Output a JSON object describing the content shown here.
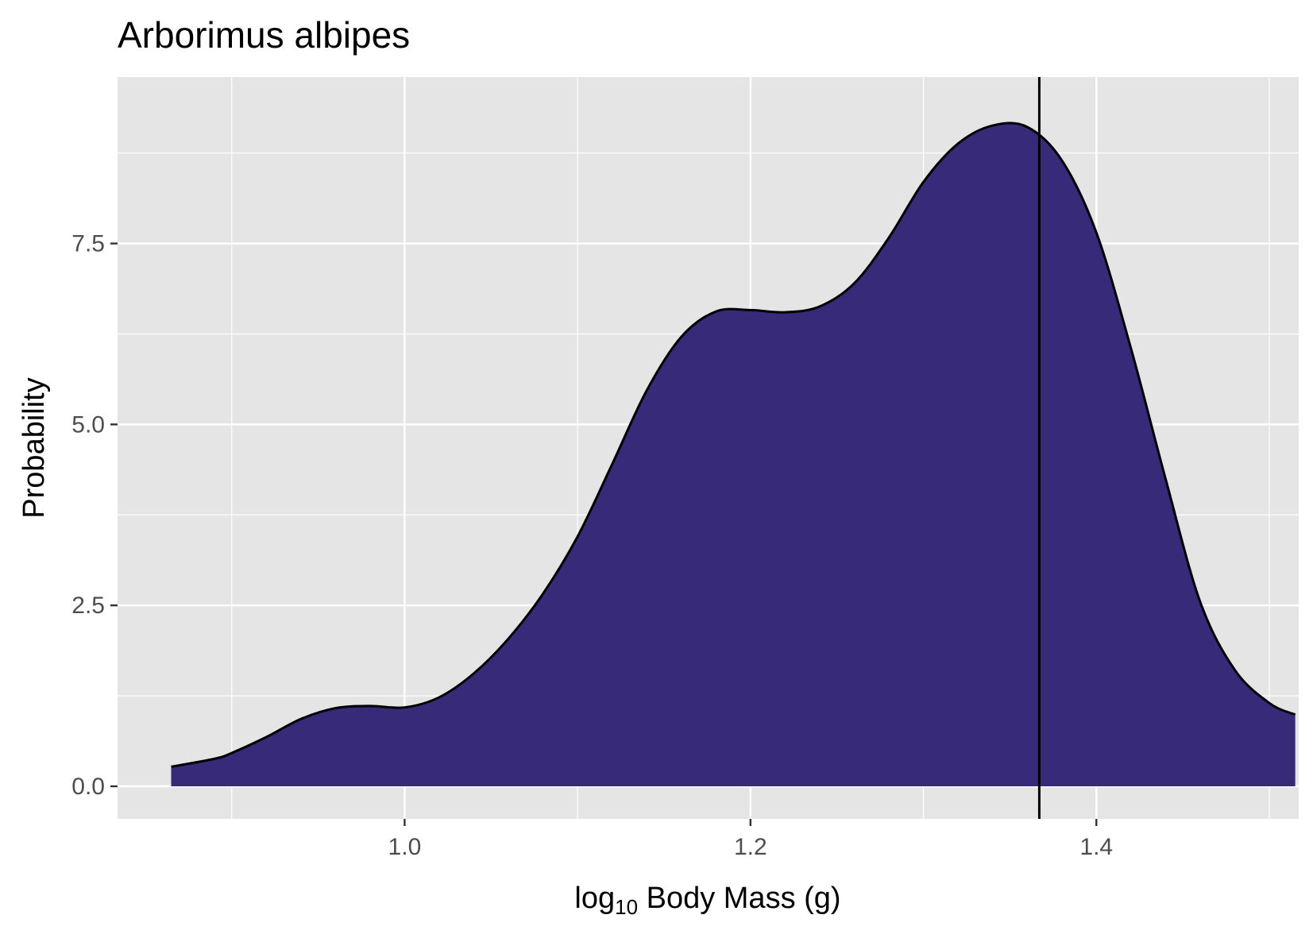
{
  "chart_data": {
    "type": "area",
    "title": "Arborimus albipes",
    "xlabel": {
      "prefix": "log",
      "subscript": "10",
      "rest": " Body Mass (g)"
    },
    "ylabel": "Probability",
    "xlim": [
      0.834,
      1.517
    ],
    "ylim": [
      -0.45,
      9.8
    ],
    "x_ticks": [
      {
        "value": 1.0,
        "label": "1.0"
      },
      {
        "value": 1.2,
        "label": "1.2"
      },
      {
        "value": 1.4,
        "label": "1.4"
      }
    ],
    "y_ticks": [
      {
        "value": 0.0,
        "label": "0.0"
      },
      {
        "value": 2.5,
        "label": "2.5"
      },
      {
        "value": 5.0,
        "label": "5.0"
      },
      {
        "value": 7.5,
        "label": "7.5"
      }
    ],
    "x_minor": [
      0.9,
      1.1,
      1.3,
      1.5
    ],
    "y_minor": [
      1.25,
      3.75,
      6.25,
      8.75
    ],
    "grid": true,
    "fill_color": "#372a78",
    "line_color": "#000000",
    "background_color": "#e5e5e5",
    "vline_x": 1.367,
    "series": [
      {
        "x": [
          0.865,
          0.89,
          0.9,
          0.92,
          0.94,
          0.96,
          0.98,
          1.0,
          1.02,
          1.04,
          1.06,
          1.08,
          1.1,
          1.12,
          1.14,
          1.16,
          1.18,
          1.2,
          1.22,
          1.24,
          1.26,
          1.28,
          1.3,
          1.32,
          1.34,
          1.36,
          1.38,
          1.4,
          1.42,
          1.44,
          1.46,
          1.48,
          1.5,
          1.515
        ],
        "y": [
          0.27,
          0.38,
          0.46,
          0.68,
          0.93,
          1.08,
          1.11,
          1.09,
          1.23,
          1.56,
          2.04,
          2.66,
          3.45,
          4.45,
          5.47,
          6.21,
          6.56,
          6.58,
          6.55,
          6.63,
          6.95,
          7.58,
          8.35,
          8.88,
          9.13,
          9.11,
          8.65,
          7.65,
          6.05,
          4.25,
          2.55,
          1.61,
          1.15,
          0.99
        ]
      }
    ]
  }
}
